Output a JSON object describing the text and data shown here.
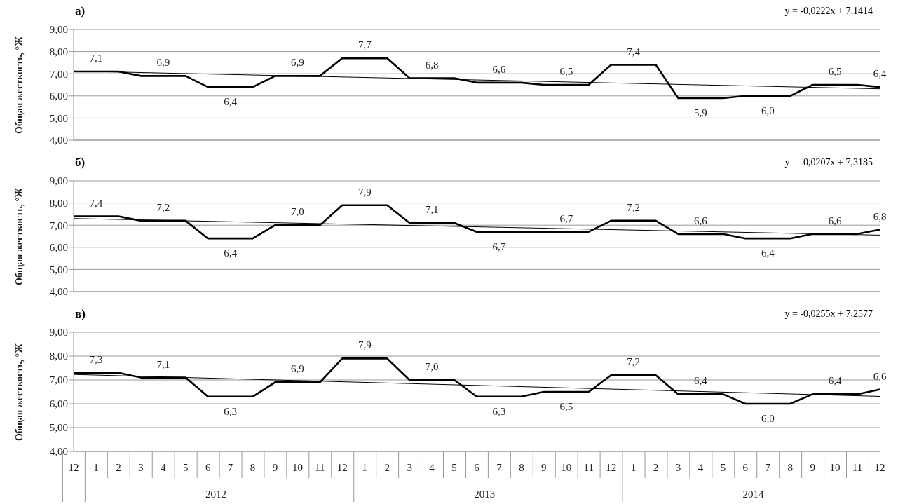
{
  "chart_data": [
    {
      "type": "line",
      "title": "а)",
      "ylabel": "Общая жесткость, °Ж",
      "annotations": [
        "y = -0,0222x + 7,1414"
      ],
      "categories": [
        "12",
        "1",
        "2",
        "3",
        "4",
        "5",
        "6",
        "7",
        "8",
        "9",
        "10",
        "11",
        "12",
        "1",
        "2",
        "3",
        "4",
        "5",
        "6",
        "7",
        "8",
        "9",
        "10",
        "11",
        "12",
        "1",
        "2",
        "3",
        "4",
        "5",
        "6",
        "7",
        "8",
        "9",
        "10",
        "11",
        "12"
      ],
      "ylim": [
        4,
        9
      ],
      "yticks": [
        {
          "value": 4,
          "label": "4,00"
        },
        {
          "value": 5,
          "label": "5,00"
        },
        {
          "value": 6,
          "label": "6,00"
        },
        {
          "value": 7,
          "label": "7,00"
        },
        {
          "value": 8,
          "label": "8,00"
        },
        {
          "value": 9,
          "label": "9,00"
        }
      ],
      "grid": "y",
      "tick_labels": "y",
      "legend": false,
      "marker": "none",
      "line_style": "solid",
      "series": [
        {
          "type": "line",
          "color": "#000000",
          "values": [
            7.1,
            7.1,
            7.1,
            6.9,
            6.9,
            6.9,
            6.4,
            6.4,
            6.4,
            6.9,
            6.9,
            6.9,
            7.7,
            7.7,
            7.7,
            6.8,
            6.8,
            6.8,
            6.6,
            6.6,
            6.6,
            6.5,
            6.5,
            6.5,
            7.4,
            7.4,
            7.4,
            5.9,
            5.9,
            5.9,
            6.0,
            6.0,
            6.0,
            6.5,
            6.5,
            6.5,
            6.4
          ],
          "value_labels": [
            null,
            "7,1",
            null,
            null,
            "6,9",
            null,
            null,
            "6,4",
            null,
            null,
            "6,9",
            null,
            null,
            "7,7",
            null,
            null,
            "6,8",
            null,
            null,
            "6,6",
            null,
            null,
            "6,5",
            null,
            null,
            "7,4",
            null,
            null,
            "5,9",
            null,
            null,
            "6,0",
            null,
            null,
            "6,5",
            null,
            "6,4"
          ]
        },
        {
          "type": "line",
          "color": "#000000",
          "values": [
            7.12,
            null,
            null,
            null,
            null,
            null,
            null,
            null,
            null,
            null,
            null,
            null,
            null,
            null,
            null,
            null,
            null,
            null,
            null,
            null,
            null,
            null,
            null,
            null,
            null,
            null,
            null,
            null,
            null,
            null,
            null,
            null,
            null,
            null,
            null,
            null,
            6.32
          ]
        }
      ]
    },
    {
      "type": "line",
      "title": "б)",
      "ylabel": "Общая жесткость, °Ж",
      "annotations": [
        "y = -0,0207x + 7,3185"
      ],
      "categories": [
        "12",
        "1",
        "2",
        "3",
        "4",
        "5",
        "6",
        "7",
        "8",
        "9",
        "10",
        "11",
        "12",
        "1",
        "2",
        "3",
        "4",
        "5",
        "6",
        "7",
        "8",
        "9",
        "10",
        "11",
        "12",
        "1",
        "2",
        "3",
        "4",
        "5",
        "6",
        "7",
        "8",
        "9",
        "10",
        "11",
        "12"
      ],
      "ylim": [
        4,
        9
      ],
      "yticks": [
        {
          "value": 4,
          "label": "4,00"
        },
        {
          "value": 5,
          "label": "5,00"
        },
        {
          "value": 6,
          "label": "6,00"
        },
        {
          "value": 7,
          "label": "7,00"
        },
        {
          "value": 8,
          "label": "8,00"
        },
        {
          "value": 9,
          "label": "9,00"
        }
      ],
      "grid": "y",
      "tick_labels": "y",
      "legend": false,
      "marker": "none",
      "line_style": "solid",
      "series": [
        {
          "type": "line",
          "color": "#000000",
          "values": [
            7.4,
            7.4,
            7.4,
            7.2,
            7.2,
            7.2,
            6.4,
            6.4,
            6.4,
            7.0,
            7.0,
            7.0,
            7.9,
            7.9,
            7.9,
            7.1,
            7.1,
            7.1,
            6.7,
            6.7,
            6.7,
            6.7,
            6.7,
            6.7,
            7.2,
            7.2,
            7.2,
            6.6,
            6.6,
            6.6,
            6.4,
            6.4,
            6.4,
            6.6,
            6.6,
            6.6,
            6.8
          ],
          "value_labels": [
            null,
            "7,4",
            null,
            null,
            "7,2",
            null,
            null,
            "6,4",
            null,
            null,
            "7,0",
            null,
            null,
            "7,9",
            null,
            null,
            "7,1",
            null,
            null,
            "6,7",
            null,
            null,
            "6,7",
            null,
            null,
            "7,2",
            null,
            null,
            "6,6",
            null,
            null,
            "6,4",
            null,
            null,
            "6,6",
            null,
            "6,8"
          ]
        },
        {
          "type": "line",
          "color": "#000000",
          "values": [
            7.3,
            null,
            null,
            null,
            null,
            null,
            null,
            null,
            null,
            null,
            null,
            null,
            null,
            null,
            null,
            null,
            null,
            null,
            null,
            null,
            null,
            null,
            null,
            null,
            null,
            null,
            null,
            null,
            null,
            null,
            null,
            null,
            null,
            null,
            null,
            null,
            6.55
          ]
        }
      ]
    },
    {
      "type": "line",
      "title": "в)",
      "ylabel": "Общая жесткость, °Ж",
      "annotations": [
        "y = -0,0255x + 7,2577",
        "2012",
        "2013",
        "2014"
      ],
      "categories": [
        "12",
        "1",
        "2",
        "3",
        "4",
        "5",
        "6",
        "7",
        "8",
        "9",
        "10",
        "11",
        "12",
        "1",
        "2",
        "3",
        "4",
        "5",
        "6",
        "7",
        "8",
        "9",
        "10",
        "11",
        "12",
        "1",
        "2",
        "3",
        "4",
        "5",
        "6",
        "7",
        "8",
        "9",
        "10",
        "11",
        "12"
      ],
      "ylim": [
        4,
        9
      ],
      "yticks": [
        {
          "value": 4,
          "label": "4,00"
        },
        {
          "value": 5,
          "label": "5,00"
        },
        {
          "value": 6,
          "label": "6,00"
        },
        {
          "value": 7,
          "label": "7,00"
        },
        {
          "value": 8,
          "label": "8,00"
        },
        {
          "value": 9,
          "label": "9,00"
        }
      ],
      "grid": "y",
      "legend": false,
      "marker": "none",
      "line_style": "solid",
      "series": [
        {
          "type": "line",
          "color": "#000000",
          "values": [
            7.3,
            7.3,
            7.3,
            7.1,
            7.1,
            7.1,
            6.3,
            6.3,
            6.3,
            6.9,
            6.9,
            6.9,
            7.9,
            7.9,
            7.9,
            7.0,
            7.0,
            7.0,
            6.3,
            6.3,
            6.3,
            6.5,
            6.5,
            6.5,
            7.2,
            7.2,
            7.2,
            6.4,
            6.4,
            6.4,
            6.0,
            6.0,
            6.0,
            6.4,
            6.4,
            6.4,
            6.6
          ],
          "value_labels": [
            null,
            "7,3",
            null,
            null,
            "7,1",
            null,
            null,
            "6,3",
            null,
            null,
            "6,9",
            null,
            null,
            "7,9",
            null,
            null,
            "7,0",
            null,
            null,
            "6,3",
            null,
            null,
            "6,5",
            null,
            null,
            "7,2",
            null,
            null,
            "6,4",
            null,
            null,
            "6,0",
            null,
            null,
            "6,4",
            null,
            "6,6"
          ]
        },
        {
          "type": "line",
          "color": "#000000",
          "values": [
            7.23,
            null,
            null,
            null,
            null,
            null,
            null,
            null,
            null,
            null,
            null,
            null,
            null,
            null,
            null,
            null,
            null,
            null,
            null,
            null,
            null,
            null,
            null,
            null,
            null,
            null,
            null,
            null,
            null,
            null,
            null,
            null,
            null,
            null,
            null,
            null,
            6.31
          ]
        }
      ]
    }
  ]
}
